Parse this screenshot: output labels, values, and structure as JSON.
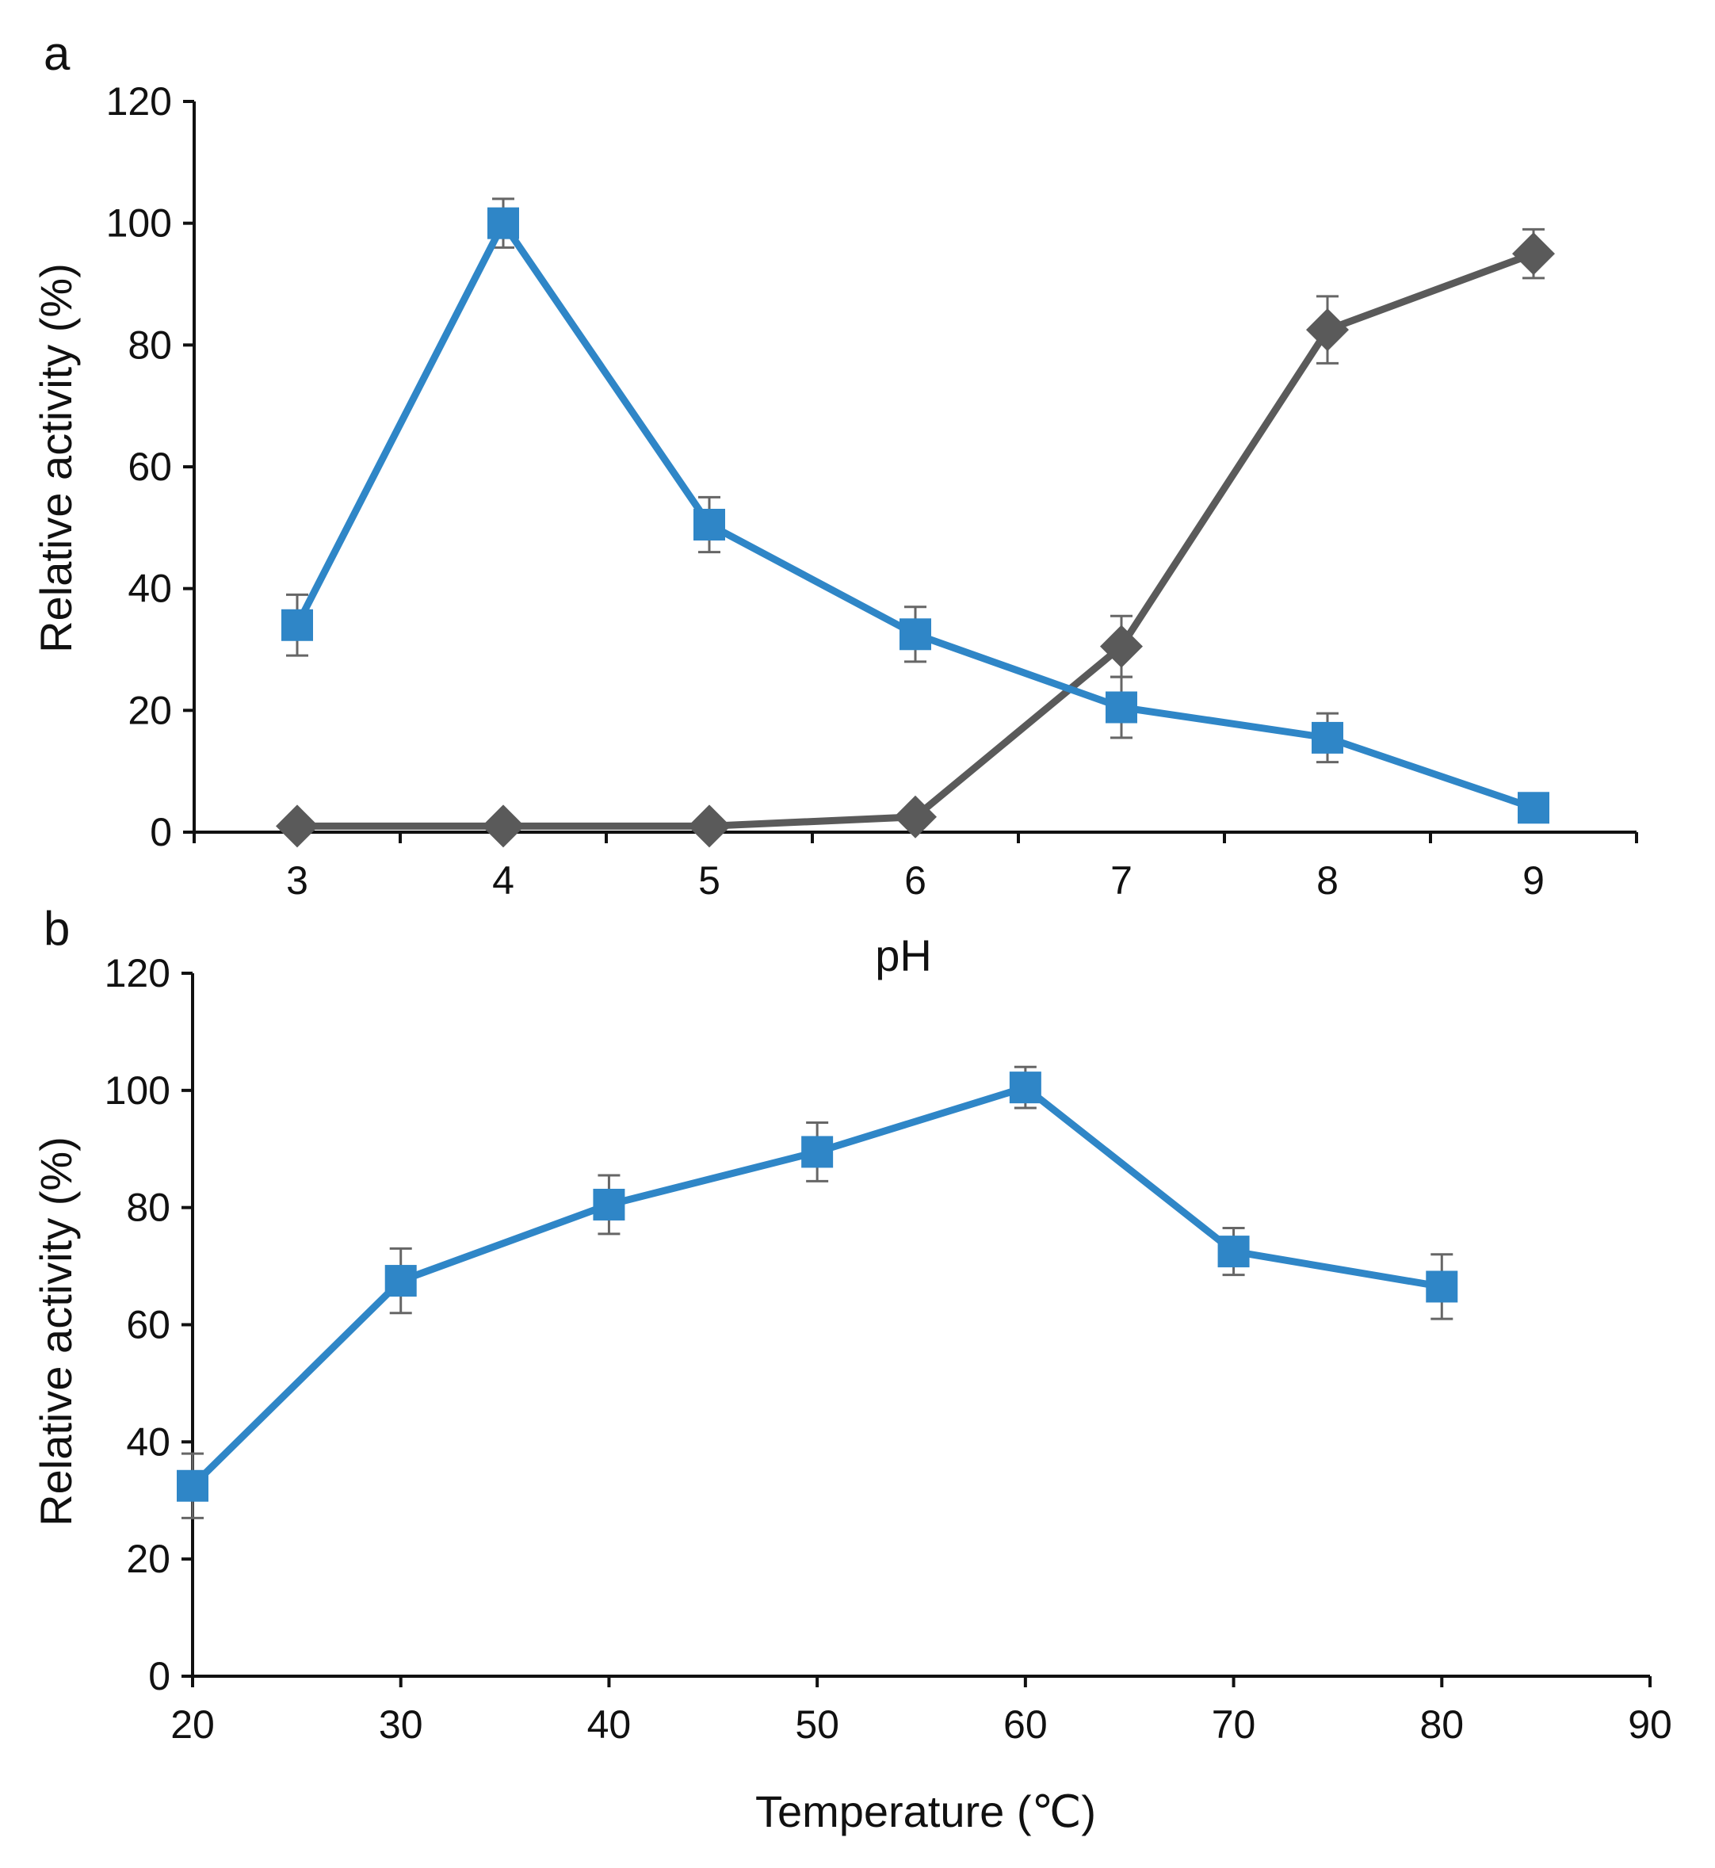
{
  "colors": {
    "blue": "#2f86c7",
    "gray": "#5a5a5a",
    "axis": "#111111",
    "error": "#666666"
  },
  "chart_data": [
    {
      "panel": "a",
      "type": "line",
      "xlabel": "pH",
      "ylabel": "Relative activity (%)",
      "ylim": [
        0,
        120
      ],
      "yticks": [
        0,
        20,
        40,
        60,
        80,
        100,
        120
      ],
      "categories": [
        "3",
        "4",
        "5",
        "6",
        "7",
        "8",
        "9"
      ],
      "series": [
        {
          "name": "blue-squares",
          "marker": "square",
          "color": "#2f86c7",
          "values": [
            34,
            100,
            50.5,
            32.5,
            20.5,
            15.5,
            4
          ],
          "errors": [
            5,
            4,
            4.5,
            4.5,
            5,
            4,
            0
          ]
        },
        {
          "name": "gray-diamonds",
          "marker": "diamond",
          "color": "#5a5a5a",
          "values": [
            1,
            1,
            1,
            2.5,
            30.5,
            82.5,
            95
          ],
          "errors": [
            0,
            0,
            0,
            0,
            5,
            5.5,
            4
          ]
        }
      ]
    },
    {
      "panel": "b",
      "type": "line",
      "xlabel": "Temperature (℃)",
      "ylabel": "Relative activity (%)",
      "xlim": [
        20,
        90
      ],
      "xticks": [
        20,
        30,
        40,
        50,
        60,
        70,
        80,
        90
      ],
      "ylim": [
        0,
        120
      ],
      "yticks": [
        0,
        20,
        40,
        60,
        80,
        100,
        120
      ],
      "series": [
        {
          "name": "blue-squares",
          "marker": "square",
          "color": "#2f86c7",
          "x": [
            20,
            30,
            40,
            50,
            60,
            70,
            80
          ],
          "values": [
            32.5,
            67.5,
            80.5,
            89.5,
            100.5,
            72.5,
            66.5
          ],
          "errors": [
            5.5,
            5.5,
            5,
            5,
            3.5,
            4,
            5.5
          ]
        }
      ]
    }
  ]
}
